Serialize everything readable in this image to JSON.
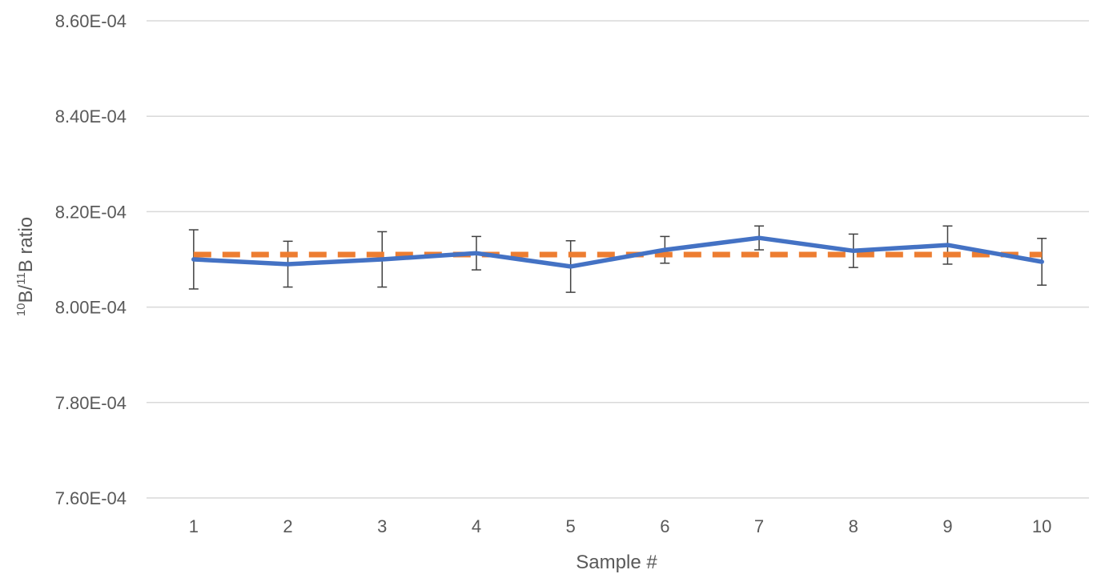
{
  "chart_data": {
    "type": "line",
    "title": "",
    "xlabel": "Sample #",
    "ylabel_parts": {
      "sup1": "10",
      "b1": "B/",
      "sup2": "11",
      "b2": "B ratio"
    },
    "categories": [
      "1",
      "2",
      "3",
      "4",
      "5",
      "6",
      "7",
      "8",
      "9",
      "10"
    ],
    "yticks": [
      "8.60E-04",
      "8.40E-04",
      "8.20E-04",
      "8.00E-04",
      "7.80E-04",
      "7.60E-04"
    ],
    "ytick_values": [
      0.00086,
      0.00084,
      0.00082,
      0.0008,
      0.00078,
      0.00076
    ],
    "ylim": [
      0.00076,
      0.00086
    ],
    "grid": true,
    "legend": "none",
    "series": [
      {
        "color": "#4472C4",
        "style": "solid",
        "values": [
          0.00081,
          0.000809,
          0.00081,
          0.0008113,
          0.0008085,
          0.000812,
          0.0008145,
          0.0008118,
          0.000813,
          0.0008095
        ],
        "error": [
          6.2e-06,
          4.8e-06,
          5.8e-06,
          3.5e-06,
          5.4e-06,
          2.8e-06,
          2.5e-06,
          3.5e-06,
          4e-06,
          4.9e-06
        ]
      },
      {
        "color": "#ED7D31",
        "style": "dashed",
        "values": [
          0.000811,
          0.000811,
          0.000811,
          0.000811,
          0.000811,
          0.000811,
          0.000811,
          0.000811,
          0.000811,
          0.000811
        ]
      }
    ]
  }
}
